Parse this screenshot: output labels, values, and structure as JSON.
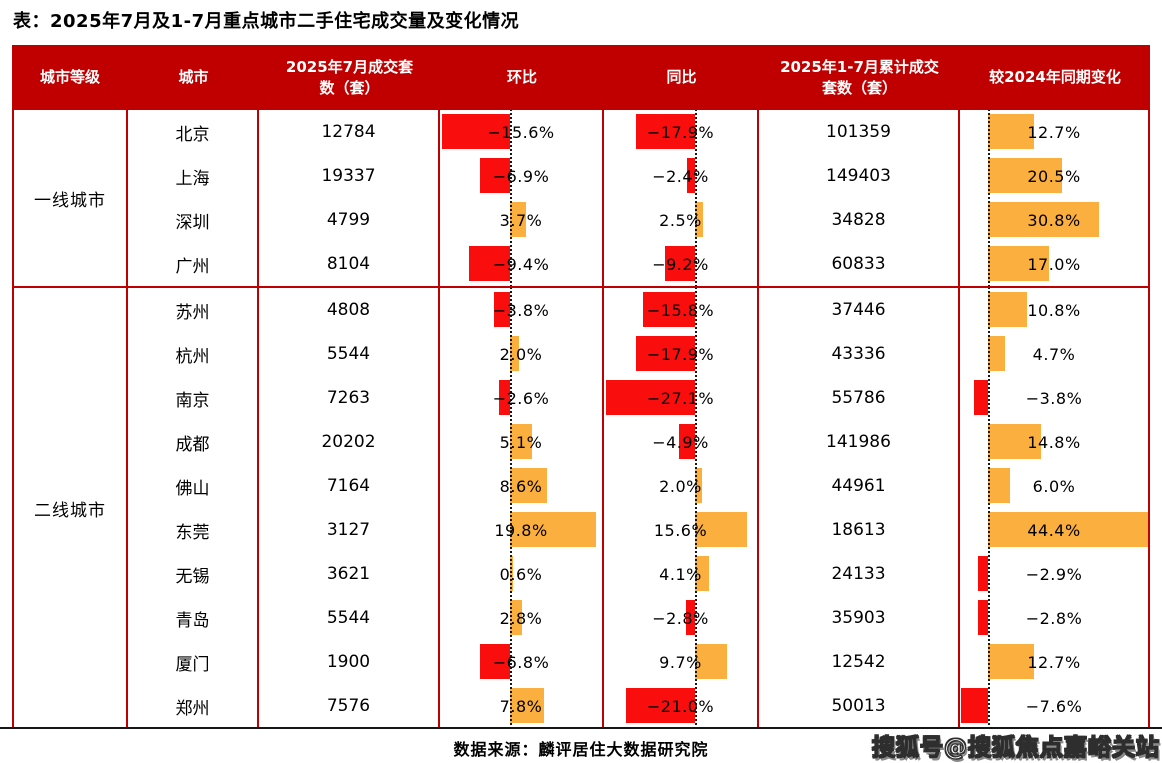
{
  "title": "表：2025年7月及1-7月重点城市二手住宅成交量及变化情况",
  "table": {
    "headers": [
      "城市等级",
      "城市",
      "2025年7月成交套数（套）",
      "环比",
      "同比",
      "2025年1-7月累计成交套数（套）",
      "较2024年同期变化"
    ],
    "groups": [
      {
        "tier": "一线城市",
        "rows": [
          {
            "city": "北京",
            "july": "12784",
            "mom": {
              "value": -15.6,
              "label": "−15.6%"
            },
            "yoy": {
              "value": -17.9,
              "label": "−17.9%"
            },
            "cum": "101359",
            "vs2024": {
              "value": 12.7,
              "label": "12.7%"
            }
          },
          {
            "city": "上海",
            "july": "19337",
            "mom": {
              "value": -6.9,
              "label": "−6.9%"
            },
            "yoy": {
              "value": -2.4,
              "label": "−2.4%"
            },
            "cum": "149403",
            "vs2024": {
              "value": 20.5,
              "label": "20.5%"
            }
          },
          {
            "city": "深圳",
            "july": "4799",
            "mom": {
              "value": 3.7,
              "label": "3.7%"
            },
            "yoy": {
              "value": 2.5,
              "label": "2.5%"
            },
            "cum": "34828",
            "vs2024": {
              "value": 30.8,
              "label": "30.8%"
            }
          },
          {
            "city": "广州",
            "july": "8104",
            "mom": {
              "value": -9.4,
              "label": "−9.4%"
            },
            "yoy": {
              "value": -9.2,
              "label": "−9.2%"
            },
            "cum": "60833",
            "vs2024": {
              "value": 17.0,
              "label": "17.0%"
            }
          }
        ]
      },
      {
        "tier": "二线城市",
        "rows": [
          {
            "city": "苏州",
            "july": "4808",
            "mom": {
              "value": -3.8,
              "label": "−3.8%"
            },
            "yoy": {
              "value": -15.8,
              "label": "−15.8%"
            },
            "cum": "37446",
            "vs2024": {
              "value": 10.8,
              "label": "10.8%"
            }
          },
          {
            "city": "杭州",
            "july": "5544",
            "mom": {
              "value": 2.0,
              "label": "2.0%"
            },
            "yoy": {
              "value": -17.9,
              "label": "−17.9%"
            },
            "cum": "43336",
            "vs2024": {
              "value": 4.7,
              "label": "4.7%"
            }
          },
          {
            "city": "南京",
            "july": "7263",
            "mom": {
              "value": -2.6,
              "label": "−2.6%"
            },
            "yoy": {
              "value": -27.1,
              "label": "−27.1%"
            },
            "cum": "55786",
            "vs2024": {
              "value": -3.8,
              "label": "−3.8%"
            }
          },
          {
            "city": "成都",
            "july": "20202",
            "mom": {
              "value": 5.1,
              "label": "5.1%"
            },
            "yoy": {
              "value": -4.9,
              "label": "−4.9%"
            },
            "cum": "141986",
            "vs2024": {
              "value": 14.8,
              "label": "14.8%"
            }
          },
          {
            "city": "佛山",
            "july": "7164",
            "mom": {
              "value": 8.6,
              "label": "8.6%"
            },
            "yoy": {
              "value": 2.0,
              "label": "2.0%"
            },
            "cum": "44961",
            "vs2024": {
              "value": 6.0,
              "label": "6.0%"
            }
          },
          {
            "city": "东莞",
            "july": "3127",
            "mom": {
              "value": 19.8,
              "label": "19.8%"
            },
            "yoy": {
              "value": 15.6,
              "label": "15.6%"
            },
            "cum": "18613",
            "vs2024": {
              "value": 44.4,
              "label": "44.4%"
            }
          },
          {
            "city": "无锡",
            "july": "3621",
            "mom": {
              "value": 0.6,
              "label": "0.6%"
            },
            "yoy": {
              "value": 4.1,
              "label": "4.1%"
            },
            "cum": "24133",
            "vs2024": {
              "value": -2.9,
              "label": "−2.9%"
            }
          },
          {
            "city": "青岛",
            "july": "5544",
            "mom": {
              "value": 2.8,
              "label": "2.8%"
            },
            "yoy": {
              "value": -2.8,
              "label": "−2.8%"
            },
            "cum": "35903",
            "vs2024": {
              "value": -2.8,
              "label": "−2.8%"
            }
          },
          {
            "city": "厦门",
            "july": "1900",
            "mom": {
              "value": -6.8,
              "label": "−6.8%"
            },
            "yoy": {
              "value": 9.7,
              "label": "9.7%"
            },
            "cum": "12542",
            "vs2024": {
              "value": 12.7,
              "label": "12.7%"
            }
          },
          {
            "city": "郑州",
            "july": "7576",
            "mom": {
              "value": 7.8,
              "label": "7.8%"
            },
            "yoy": {
              "value": -21.0,
              "label": "−21.0%"
            },
            "cum": "50013",
            "vs2024": {
              "value": -7.6,
              "label": "−7.6%"
            }
          }
        ]
      }
    ]
  },
  "footer": {
    "source": "数据来源：麟评居住大数据研究院",
    "watermark": "搜狐号@搜狐焦点嘉峪关站"
  },
  "colors": {
    "header_bg": "#c00000",
    "border": "#c00000",
    "negative_bar": "#fa0d0d",
    "positive_bar": "#faaf3e",
    "zero_line": "#161616"
  },
  "chart_data": {
    "type": "table",
    "title": "表：2025年7月及1-7月重点城市二手住宅成交量及变化情况",
    "columns": [
      "城市等级",
      "城市",
      "2025年7月成交套数（套）",
      "环比",
      "同比",
      "2025年1-7月累计成交套数（套）",
      "较2024年同期变化"
    ],
    "rows": [
      [
        "一线城市",
        "北京",
        12784,
        -15.6,
        -17.9,
        101359,
        12.7
      ],
      [
        "一线城市",
        "上海",
        19337,
        -6.9,
        -2.4,
        149403,
        20.5
      ],
      [
        "一线城市",
        "深圳",
        4799,
        3.7,
        2.5,
        34828,
        30.8
      ],
      [
        "一线城市",
        "广州",
        8104,
        -9.4,
        -9.2,
        60833,
        17.0
      ],
      [
        "二线城市",
        "苏州",
        4808,
        -3.8,
        -15.8,
        37446,
        10.8
      ],
      [
        "二线城市",
        "杭州",
        5544,
        2.0,
        -17.9,
        43336,
        4.7
      ],
      [
        "二线城市",
        "南京",
        7263,
        -2.6,
        -27.1,
        55786,
        -3.8
      ],
      [
        "二线城市",
        "成都",
        20202,
        5.1,
        -4.9,
        141986,
        14.8
      ],
      [
        "二线城市",
        "佛山",
        7164,
        8.6,
        2.0,
        44961,
        6.0
      ],
      [
        "二线城市",
        "东莞",
        3127,
        19.8,
        15.6,
        18613,
        44.4
      ],
      [
        "二线城市",
        "无锡",
        3621,
        0.6,
        4.1,
        24133,
        -2.9
      ],
      [
        "二线城市",
        "青岛",
        5544,
        2.8,
        -2.8,
        35903,
        -2.8
      ],
      [
        "二线城市",
        "厦门",
        1900,
        -6.8,
        9.7,
        12542,
        12.7
      ],
      [
        "二线城市",
        "郑州",
        7576,
        7.8,
        -21.0,
        50013,
        -7.6
      ]
    ],
    "layout_hints": {
      "in_cell_bars": [
        "环比",
        "同比",
        "较2024年同期变化"
      ],
      "bar_color_negative": "red",
      "bar_color_positive": "orange",
      "zero_axis": "dotted vertical line in each bar column"
    }
  }
}
